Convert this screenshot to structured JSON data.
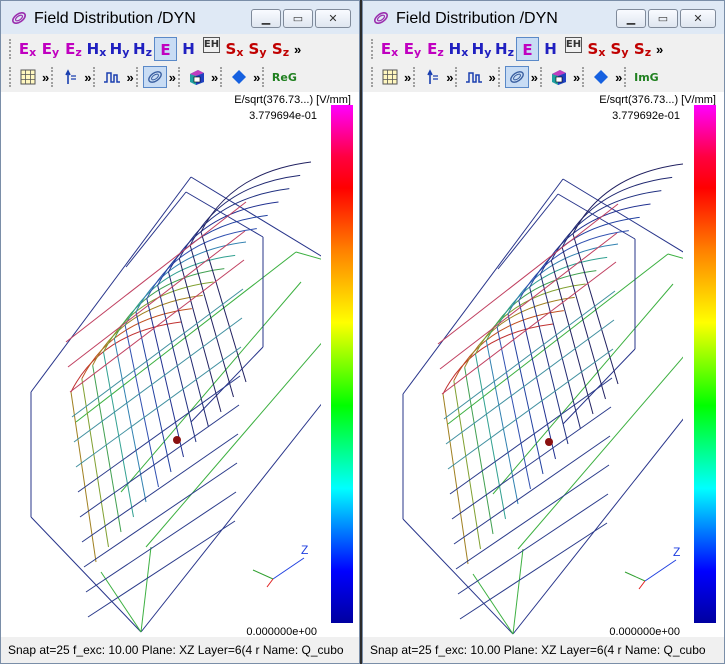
{
  "windows": [
    {
      "title": "Field Distribution /DYN",
      "toolbar1": {
        "buttons": [
          {
            "main": "E",
            "sub": "x",
            "color": "#c000c0"
          },
          {
            "main": "E",
            "sub": "y",
            "color": "#c000c0"
          },
          {
            "main": "E",
            "sub": "z",
            "color": "#c000c0"
          },
          {
            "main": "H",
            "sub": "x",
            "color": "#2020c0"
          },
          {
            "main": "H",
            "sub": "y",
            "color": "#2020c0"
          },
          {
            "main": "H",
            "sub": "z",
            "color": "#2020c0"
          },
          {
            "main": "E",
            "sub": "",
            "color": "#c000c0"
          },
          {
            "main": "H",
            "sub": "",
            "color": "#2020c0"
          },
          {
            "main": "EH",
            "sub": "",
            "color": "#333333"
          },
          {
            "main": "S",
            "sub": "x",
            "color": "#c00000"
          },
          {
            "main": "S",
            "sub": "y",
            "color": "#c00000"
          },
          {
            "main": "S",
            "sub": "z",
            "color": "#c00000"
          }
        ],
        "overflow": "»"
      },
      "toolbar2": {
        "component_label": "ReG",
        "component_color": "#208020",
        "overflow": "»"
      },
      "colorbar": {
        "title": "E/sqrt(376.73...) [V/mm]",
        "max": "3.779694e-01",
        "min": "0.000000e+00"
      },
      "axes": {
        "z": "Z"
      },
      "status": "Snap at=25  f_exc: 10.00  Plane: XZ  Layer=6(4 r  Name: Q_cubo"
    },
    {
      "title": "Field Distribution /DYN",
      "toolbar1": {
        "buttons": [
          {
            "main": "E",
            "sub": "x",
            "color": "#c000c0"
          },
          {
            "main": "E",
            "sub": "y",
            "color": "#c000c0"
          },
          {
            "main": "E",
            "sub": "z",
            "color": "#c000c0"
          },
          {
            "main": "H",
            "sub": "x",
            "color": "#2020c0"
          },
          {
            "main": "H",
            "sub": "y",
            "color": "#2020c0"
          },
          {
            "main": "H",
            "sub": "z",
            "color": "#2020c0"
          },
          {
            "main": "E",
            "sub": "",
            "color": "#c000c0"
          },
          {
            "main": "H",
            "sub": "",
            "color": "#2020c0"
          },
          {
            "main": "EH",
            "sub": "",
            "color": "#333333"
          },
          {
            "main": "S",
            "sub": "x",
            "color": "#c00000"
          },
          {
            "main": "S",
            "sub": "y",
            "color": "#c00000"
          },
          {
            "main": "S",
            "sub": "z",
            "color": "#c00000"
          }
        ],
        "overflow": "»"
      },
      "toolbar2": {
        "component_label": "ImG",
        "component_color": "#208020",
        "overflow": "»"
      },
      "colorbar": {
        "title": "E/sqrt(376.73...) [V/mm]",
        "max": "3.779692e-01",
        "min": "0.000000e+00"
      },
      "axes": {
        "z": "Z"
      },
      "status": "Snap at=25  f_exc: 10.00  Plane: XZ  Layer=6(4 r  Name: Q_cubo"
    }
  ],
  "icons": {
    "title": "field-distribution-icon",
    "grid": "grid-icon",
    "arrow": "vector-arrow-icon",
    "signal": "signal-icon",
    "wire": "wireframe-icon",
    "cube": "cube-icon",
    "diamond": "diamond-icon"
  }
}
